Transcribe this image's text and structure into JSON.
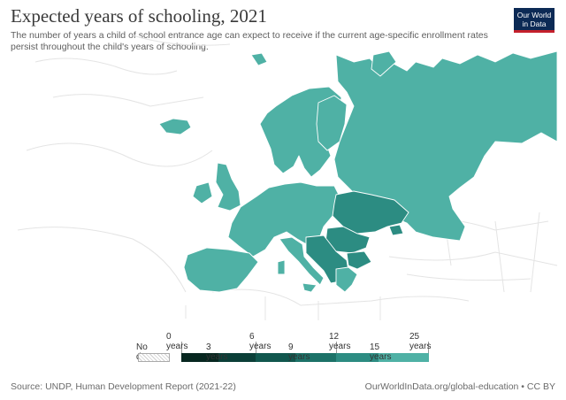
{
  "header": {
    "title": "Expected years of schooling, 2021",
    "subtitle": "The number of years a child of school entrance age can expect to receive if the current age-specific enrollment rates persist throughout the child's years of schooling."
  },
  "logo": {
    "line1": "Our World",
    "line2": "in Data"
  },
  "colors": {
    "main_fill": "#4fb1a5",
    "dark_fill": "#2c8c82",
    "outside_lines": "#e6e6e6",
    "borders": "#ffffff"
  },
  "legend": {
    "no_data_label": "No data",
    "upper_labels": [
      "0 years",
      "6 years",
      "12 years",
      "25 years"
    ],
    "lower_labels": [
      "3 years",
      "9 years",
      "15 years"
    ],
    "bins": [
      {
        "from": 0,
        "to": 3,
        "color": "#072720"
      },
      {
        "from": 3,
        "to": 6,
        "color": "#0b3f38"
      },
      {
        "from": 6,
        "to": 9,
        "color": "#11574e"
      },
      {
        "from": 9,
        "to": 12,
        "color": "#1c7268"
      },
      {
        "from": 12,
        "to": 15,
        "color": "#2c8c82"
      },
      {
        "from": 15,
        "to": 25,
        "color": "#4fb1a5"
      }
    ]
  },
  "map_regions": [
    {
      "name": "Europe and Russia",
      "bin": "15-25 years"
    },
    {
      "name": "Ukraine, Moldova, Romania, Balkans",
      "bin": "12-15 years"
    }
  ],
  "footer": {
    "source": "Source: UNDP, Human Development Report (2021-22)",
    "url": "OurWorldInData.org/global-education • CC BY"
  }
}
